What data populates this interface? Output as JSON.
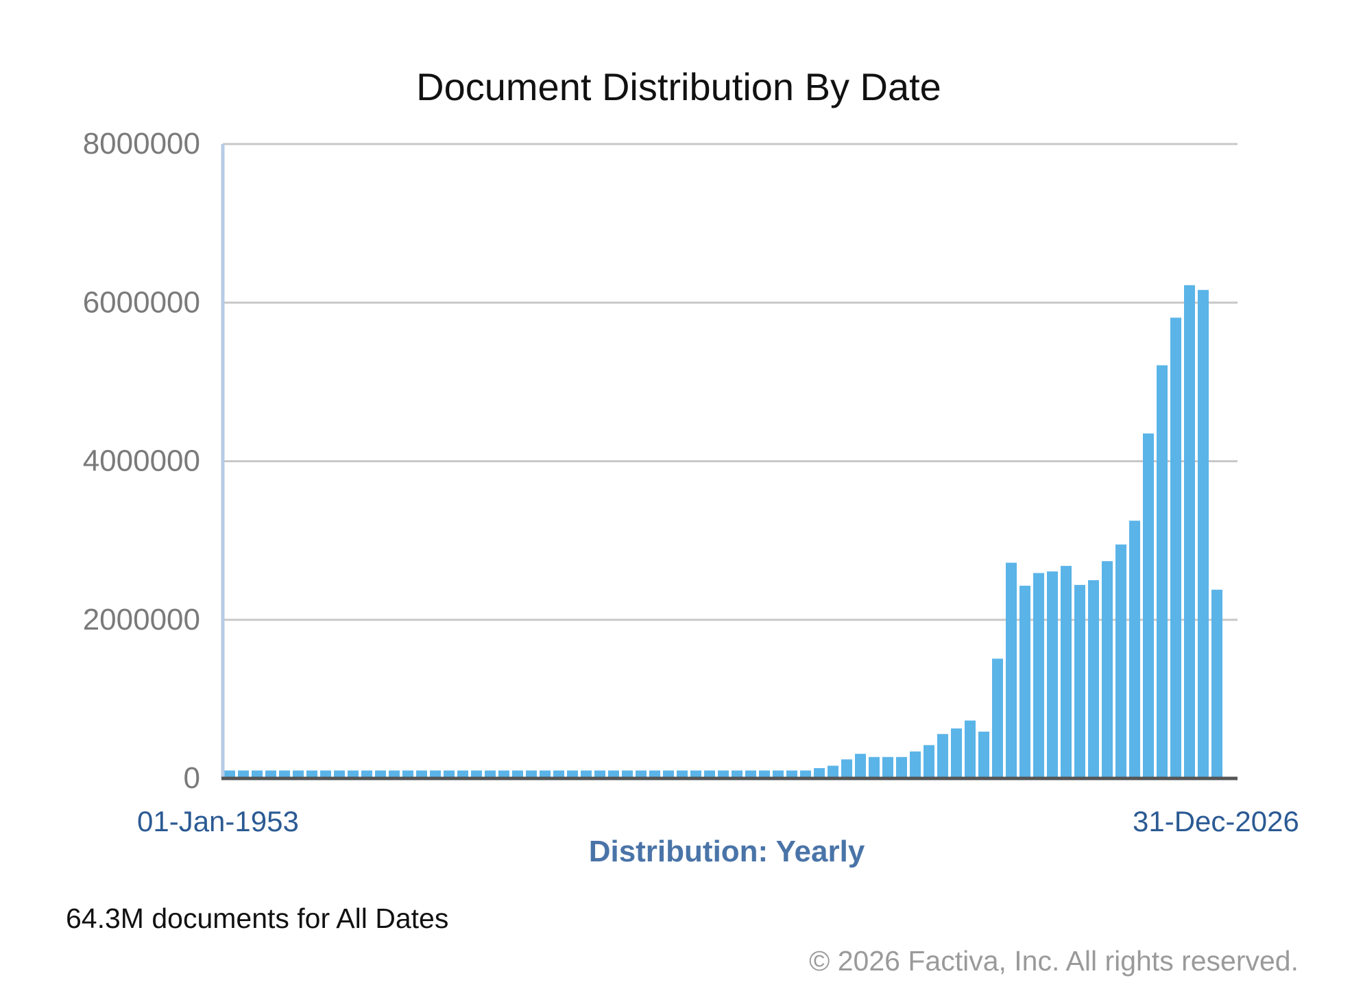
{
  "chart_data": {
    "type": "bar",
    "title": "Document Distribution By Date",
    "xlabel": "Distribution: Yearly",
    "ylabel": "",
    "ylim": [
      0,
      8000000
    ],
    "yticks": [
      "8000000",
      "6000000",
      "4000000",
      "2000000",
      "0"
    ],
    "x_start_label": "01-Jan-1953",
    "x_end_label": "31-Dec-2026",
    "grid": true,
    "bar_color": "#5ab4e8",
    "categories": [
      "1953",
      "1954",
      "1955",
      "1956",
      "1957",
      "1958",
      "1959",
      "1960",
      "1961",
      "1962",
      "1963",
      "1964",
      "1965",
      "1966",
      "1967",
      "1968",
      "1969",
      "1970",
      "1971",
      "1972",
      "1973",
      "1974",
      "1975",
      "1976",
      "1977",
      "1978",
      "1979",
      "1980",
      "1981",
      "1982",
      "1983",
      "1984",
      "1985",
      "1986",
      "1987",
      "1988",
      "1989",
      "1990",
      "1991",
      "1992",
      "1993",
      "1994",
      "1995",
      "1996",
      "1997",
      "1998",
      "1999",
      "2000",
      "2001",
      "2002",
      "2003",
      "2004",
      "2005",
      "2006",
      "2007",
      "2008",
      "2009",
      "2010",
      "2011",
      "2012",
      "2013",
      "2014",
      "2015",
      "2016",
      "2017",
      "2018",
      "2019",
      "2020",
      "2021",
      "2022",
      "2023",
      "2024",
      "2025",
      "2026"
    ],
    "values": [
      100000,
      100000,
      100000,
      100000,
      100000,
      100000,
      100000,
      100000,
      100000,
      100000,
      100000,
      100000,
      100000,
      100000,
      100000,
      100000,
      100000,
      100000,
      100000,
      100000,
      100000,
      100000,
      100000,
      100000,
      100000,
      100000,
      100000,
      100000,
      100000,
      100000,
      100000,
      100000,
      100000,
      100000,
      100000,
      100000,
      100000,
      100000,
      100000,
      100000,
      100000,
      100000,
      100000,
      130000,
      160000,
      240000,
      310000,
      270000,
      270000,
      270000,
      340000,
      420000,
      560000,
      630000,
      730000,
      590000,
      1510000,
      2720000,
      2430000,
      2590000,
      2610000,
      2680000,
      2440000,
      2500000,
      2740000,
      2950000,
      3250000,
      4350000,
      5210000,
      5810000,
      6220000,
      6160000,
      2380000,
      0
    ]
  },
  "footer": {
    "count_text": "64.3M documents for All Dates",
    "copyright_text": "© 2026 Factiva, Inc.  All rights reserved."
  }
}
